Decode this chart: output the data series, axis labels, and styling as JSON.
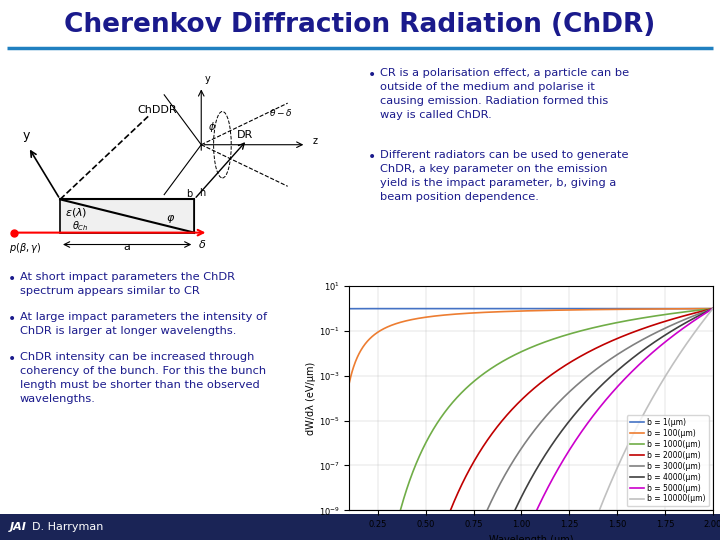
{
  "title": "Cherenkov Diffraction Radiation (ChDR)",
  "title_color": "#1a1a8c",
  "title_fontsize": 19,
  "bg_color": "#ffffff",
  "header_line_color": "#2080c0",
  "footer_bg_color": "#1a2456",
  "footer_text": "D. Harryman",
  "footer_text_color": "#ffffff",
  "bullet1": "CR is a polarisation effect, a particle can be\noutside of the medium and polarise it\ncausing emission. Radiation formed this\nway is called ChDR.",
  "bullet2": "Different radiators can be used to generate\nChDR, a key parameter on the emission\nyield is the impact parameter, b, giving a\nbeam position dependence.",
  "bottom_bullet1": "At short impact parameters the ChDR\nspectrum appears similar to CR",
  "bottom_bullet2": "At large impact parameters the intensity of\nChDR is larger at longer wavelengths.",
  "bottom_bullet3": "ChDR intensity can be increased through\ncoherency of the bunch. For this the bunch\nlength must be shorter than the observed\nwavelengths.",
  "text_color": "#1a1a8c",
  "text_fontsize": 9,
  "b_values": [
    1,
    100,
    1000,
    2000,
    3000,
    4000,
    5000,
    10000
  ],
  "plot_colors": [
    "#4472c4",
    "#ed7d31",
    "#70ad47",
    "#c00000",
    "#808080",
    "#404040",
    "#cc00cc",
    "#c0c0c0"
  ],
  "plot_labels": [
    "b = 1(μm)",
    "b = 100(μm)",
    "b = 1000(μm)",
    "b = 2000(μm)",
    "b = 3000(μm)",
    "b = 4000(μm)",
    "b = 5000(μm)",
    "b = 10000(μm)"
  ]
}
